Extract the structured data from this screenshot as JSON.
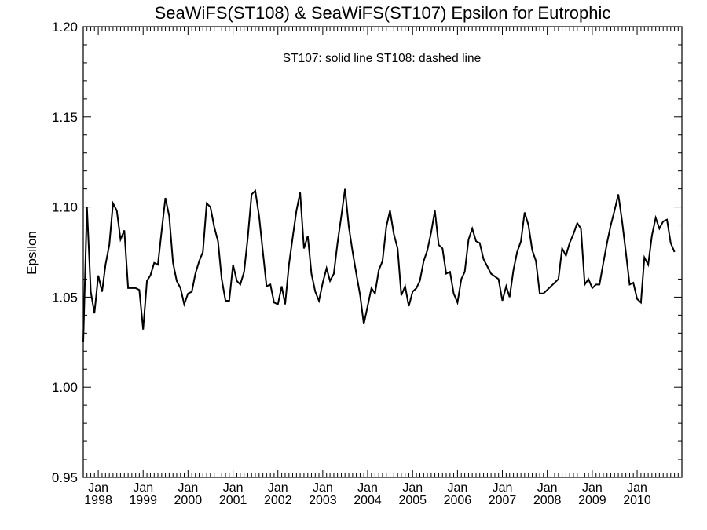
{
  "chart_data": {
    "type": "line",
    "title": "SeaWiFS(ST108) & SeaWiFS(ST107)  Epsilon for Eutrophic",
    "annotation": "ST107: solid line   ST108: dashed line",
    "xlabel": "",
    "ylabel": "Epsilon",
    "ylim": [
      0.95,
      1.2
    ],
    "xlim": [
      "1997-09-01",
      "2010-12-31"
    ],
    "yticks": [
      {
        "value": 0.95,
        "label": "0.95"
      },
      {
        "value": 1.0,
        "label": "1.00"
      },
      {
        "value": 1.05,
        "label": "1.05"
      },
      {
        "value": 1.1,
        "label": "1.10"
      },
      {
        "value": 1.15,
        "label": "1.15"
      },
      {
        "value": 1.2,
        "label": "1.20"
      }
    ],
    "xticks": [
      {
        "date": "1998-01-01",
        "month": "Jan",
        "year": "1998"
      },
      {
        "date": "1999-01-01",
        "month": "Jan",
        "year": "1999"
      },
      {
        "date": "2000-01-01",
        "month": "Jan",
        "year": "2000"
      },
      {
        "date": "2001-01-01",
        "month": "Jan",
        "year": "2001"
      },
      {
        "date": "2002-01-01",
        "month": "Jan",
        "year": "2002"
      },
      {
        "date": "2003-01-01",
        "month": "Jan",
        "year": "2003"
      },
      {
        "date": "2004-01-01",
        "month": "Jan",
        "year": "2004"
      },
      {
        "date": "2005-01-01",
        "month": "Jan",
        "year": "2005"
      },
      {
        "date": "2006-01-01",
        "month": "Jan",
        "year": "2006"
      },
      {
        "date": "2007-01-01",
        "month": "Jan",
        "year": "2007"
      },
      {
        "date": "2008-01-01",
        "month": "Jan",
        "year": "2008"
      },
      {
        "date": "2009-01-01",
        "month": "Jan",
        "year": "2009"
      },
      {
        "date": "2010-01-01",
        "month": "Jan",
        "year": "2010"
      }
    ],
    "grid": false,
    "series": [
      {
        "name": "ST107",
        "style": "solid",
        "color": "#000000",
        "points": [
          [
            "1997-09-01",
            1.025
          ],
          [
            "1997-10-01",
            1.1
          ],
          [
            "1997-11-01",
            1.053
          ],
          [
            "1997-12-01",
            1.041
          ],
          [
            "1998-01-01",
            1.062
          ],
          [
            "1998-02-01",
            1.053
          ],
          [
            "1998-03-01",
            1.068
          ],
          [
            "1998-04-01",
            1.079
          ],
          [
            "1998-05-01",
            1.102
          ],
          [
            "1998-06-01",
            1.098
          ],
          [
            "1998-07-01",
            1.082
          ],
          [
            "1998-08-01",
            1.087
          ],
          [
            "1998-09-01",
            1.055
          ],
          [
            "1998-11-01",
            1.055
          ],
          [
            "1998-12-01",
            1.054
          ],
          [
            "1999-01-01",
            1.032
          ],
          [
            "1999-02-01",
            1.059
          ],
          [
            "1999-03-01",
            1.062
          ],
          [
            "1999-04-01",
            1.069
          ],
          [
            "1999-05-01",
            1.068
          ],
          [
            "1999-06-01",
            1.087
          ],
          [
            "1999-07-01",
            1.105
          ],
          [
            "1999-08-01",
            1.095
          ],
          [
            "1999-09-01",
            1.069
          ],
          [
            "1999-10-01",
            1.059
          ],
          [
            "1999-11-01",
            1.055
          ],
          [
            "1999-12-01",
            1.046
          ],
          [
            "2000-01-01",
            1.052
          ],
          [
            "2000-02-01",
            1.053
          ],
          [
            "2000-03-01",
            1.063
          ],
          [
            "2000-04-01",
            1.07
          ],
          [
            "2000-05-01",
            1.075
          ],
          [
            "2000-06-01",
            1.102
          ],
          [
            "2000-07-01",
            1.1
          ],
          [
            "2000-08-01",
            1.089
          ],
          [
            "2000-09-01",
            1.081
          ],
          [
            "2000-10-01",
            1.06
          ],
          [
            "2000-11-01",
            1.048
          ],
          [
            "2000-12-01",
            1.048
          ],
          [
            "2001-01-01",
            1.068
          ],
          [
            "2001-02-01",
            1.059
          ],
          [
            "2001-03-01",
            1.057
          ],
          [
            "2001-04-01",
            1.064
          ],
          [
            "2001-05-01",
            1.083
          ],
          [
            "2001-06-01",
            1.107
          ],
          [
            "2001-07-01",
            1.109
          ],
          [
            "2001-08-01",
            1.095
          ],
          [
            "2001-09-01",
            1.075
          ],
          [
            "2001-10-01",
            1.056
          ],
          [
            "2001-11-01",
            1.057
          ],
          [
            "2001-12-01",
            1.047
          ],
          [
            "2002-01-01",
            1.046
          ],
          [
            "2002-02-01",
            1.056
          ],
          [
            "2002-03-01",
            1.046
          ],
          [
            "2002-04-01",
            1.068
          ],
          [
            "2002-05-01",
            1.083
          ],
          [
            "2002-06-01",
            1.098
          ],
          [
            "2002-07-01",
            1.108
          ],
          [
            "2002-08-01",
            1.077
          ],
          [
            "2002-09-01",
            1.084
          ],
          [
            "2002-10-01",
            1.063
          ],
          [
            "2002-11-01",
            1.053
          ],
          [
            "2002-12-01",
            1.048
          ],
          [
            "2003-01-01",
            1.058
          ],
          [
            "2003-02-01",
            1.066
          ],
          [
            "2003-03-01",
            1.059
          ],
          [
            "2003-04-01",
            1.063
          ],
          [
            "2003-05-01",
            1.08
          ],
          [
            "2003-06-01",
            1.095
          ],
          [
            "2003-07-01",
            1.11
          ],
          [
            "2003-08-01",
            1.089
          ],
          [
            "2003-09-01",
            1.075
          ],
          [
            "2003-10-01",
            1.063
          ],
          [
            "2003-11-01",
            1.051
          ],
          [
            "2003-12-01",
            1.035
          ],
          [
            "2004-01-01",
            1.045
          ],
          [
            "2004-02-01",
            1.055
          ],
          [
            "2004-03-01",
            1.052
          ],
          [
            "2004-04-01",
            1.065
          ],
          [
            "2004-05-01",
            1.07
          ],
          [
            "2004-06-01",
            1.089
          ],
          [
            "2004-07-01",
            1.098
          ],
          [
            "2004-08-01",
            1.085
          ],
          [
            "2004-09-01",
            1.077
          ],
          [
            "2004-10-01",
            1.051
          ],
          [
            "2004-11-01",
            1.056
          ],
          [
            "2004-12-01",
            1.045
          ],
          [
            "2005-01-01",
            1.053
          ],
          [
            "2005-02-01",
            1.055
          ],
          [
            "2005-03-01",
            1.059
          ],
          [
            "2005-04-01",
            1.07
          ],
          [
            "2005-05-01",
            1.076
          ],
          [
            "2005-06-01",
            1.086
          ],
          [
            "2005-07-01",
            1.098
          ],
          [
            "2005-08-01",
            1.079
          ],
          [
            "2005-09-01",
            1.077
          ],
          [
            "2005-10-01",
            1.063
          ],
          [
            "2005-11-01",
            1.064
          ],
          [
            "2005-12-01",
            1.052
          ],
          [
            "2006-01-01",
            1.047
          ],
          [
            "2006-02-01",
            1.06
          ],
          [
            "2006-03-01",
            1.064
          ],
          [
            "2006-04-01",
            1.082
          ],
          [
            "2006-05-01",
            1.088
          ],
          [
            "2006-06-01",
            1.081
          ],
          [
            "2006-07-01",
            1.08
          ],
          [
            "2006-08-01",
            1.071
          ],
          [
            "2006-09-01",
            1.067
          ],
          [
            "2006-10-01",
            1.063
          ],
          [
            "2006-12-01",
            1.06
          ],
          [
            "2007-01-01",
            1.048
          ],
          [
            "2007-02-01",
            1.056
          ],
          [
            "2007-03-01",
            1.05
          ],
          [
            "2007-04-01",
            1.065
          ],
          [
            "2007-05-01",
            1.075
          ],
          [
            "2007-06-01",
            1.081
          ],
          [
            "2007-07-01",
            1.097
          ],
          [
            "2007-08-01",
            1.09
          ],
          [
            "2007-09-01",
            1.076
          ],
          [
            "2007-10-01",
            1.07
          ],
          [
            "2007-11-01",
            1.052
          ],
          [
            "2007-12-01",
            1.052
          ],
          [
            "2008-04-01",
            1.06
          ],
          [
            "2008-05-01",
            1.077
          ],
          [
            "2008-06-01",
            1.073
          ],
          [
            "2008-07-01",
            1.08
          ],
          [
            "2008-08-01",
            1.085
          ],
          [
            "2008-09-01",
            1.091
          ],
          [
            "2008-10-01",
            1.088
          ],
          [
            "2008-11-01",
            1.057
          ],
          [
            "2008-12-01",
            1.06
          ],
          [
            "2009-01-01",
            1.055
          ],
          [
            "2009-02-01",
            1.057
          ],
          [
            "2009-03-01",
            1.057
          ],
          [
            "2009-04-01",
            1.069
          ],
          [
            "2009-05-01",
            1.08
          ],
          [
            "2009-06-01",
            1.09
          ],
          [
            "2009-07-01",
            1.098
          ],
          [
            "2009-08-01",
            1.107
          ],
          [
            "2009-09-01",
            1.092
          ],
          [
            "2009-10-01",
            1.075
          ],
          [
            "2009-11-01",
            1.057
          ],
          [
            "2009-12-01",
            1.058
          ],
          [
            "2010-01-01",
            1.049
          ],
          [
            "2010-02-01",
            1.047
          ],
          [
            "2010-03-01",
            1.072
          ],
          [
            "2010-04-01",
            1.068
          ],
          [
            "2010-05-01",
            1.084
          ],
          [
            "2010-06-01",
            1.094
          ],
          [
            "2010-07-01",
            1.088
          ],
          [
            "2010-08-01",
            1.092
          ],
          [
            "2010-09-01",
            1.093
          ],
          [
            "2010-10-01",
            1.08
          ],
          [
            "2010-11-01",
            1.075
          ]
        ]
      }
    ]
  }
}
